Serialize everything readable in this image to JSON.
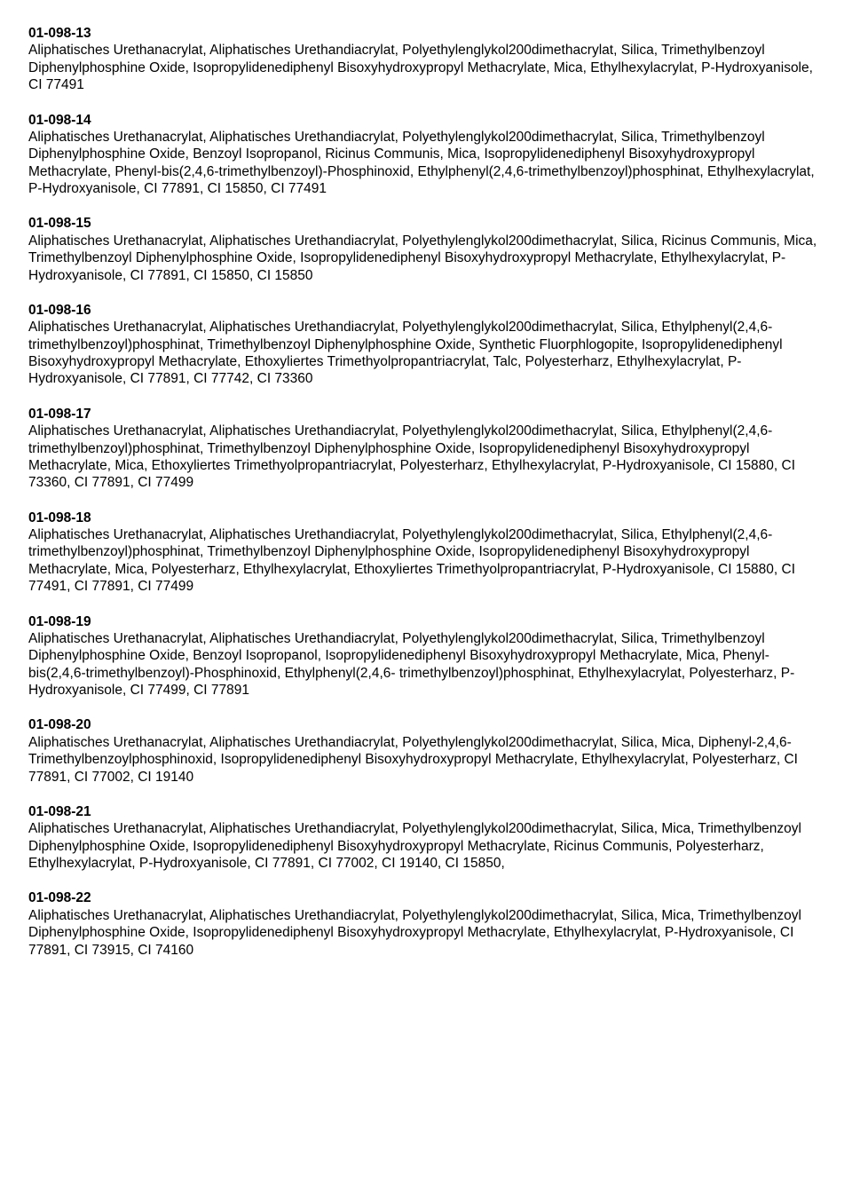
{
  "entries": [
    {
      "code": "01-098-13",
      "ingredients": "Aliphatisches Urethanacrylat, Aliphatisches Urethandiacrylat, Polyethylenglykol200dimethacrylat, Silica, Trimethylbenzoyl Diphenylphosphine Oxide, Isopropylidenediphenyl Bisoxyhydroxypropyl Methacrylate, Mica, Ethylhexylacrylat, P-Hydroxyanisole, CI 77491"
    },
    {
      "code": "01-098-14",
      "ingredients": "Aliphatisches Urethanacrylat, Aliphatisches Urethandiacrylat, Polyethylenglykol200dimethacrylat, Silica, Trimethylbenzoyl Diphenylphosphine Oxide, Benzoyl Isopropanol, Ricinus Communis, Mica, Isopropylidenediphenyl Bisoxyhydroxypropyl Methacrylate, Phenyl-bis(2,4,6-trimethylbenzoyl)-Phosphinoxid, Ethylphenyl(2,4,6-trimethylbenzoyl)phosphinat, Ethylhexylacrylat, P-Hydroxyanisole, CI 77891, CI 15850, CI 77491"
    },
    {
      "code": "01-098-15",
      "ingredients": "Aliphatisches Urethanacrylat, Aliphatisches Urethandiacrylat, Polyethylenglykol200dimethacrylat, Silica, Ricinus Communis, Mica, Trimethylbenzoyl Diphenylphosphine Oxide, Isopropylidenediphenyl Bisoxyhydroxypropyl Methacrylate, Ethylhexylacrylat, P-Hydroxyanisole, CI 77891, CI 15850, CI 15850"
    },
    {
      "code": "01-098-16",
      "ingredients": "Aliphatisches Urethanacrylat, Aliphatisches Urethandiacrylat, Polyethylenglykol200dimethacrylat, Silica, Ethylphenyl(2,4,6-trimethylbenzoyl)phosphinat, Trimethylbenzoyl Diphenylphosphine Oxide, Synthetic Fluorphlogopite, Isopropylidenediphenyl Bisoxyhydroxypropyl Methacrylate, Ethoxyliertes Trimethyolpropantriacrylat, Talc, Polyesterharz, Ethylhexylacrylat, P-Hydroxyanisole, CI 77891, CI 77742, CI 73360"
    },
    {
      "code": "01-098-17",
      "ingredients": "Aliphatisches Urethanacrylat, Aliphatisches Urethandiacrylat, Polyethylenglykol200dimethacrylat, Silica, Ethylphenyl(2,4,6-trimethylbenzoyl)phosphinat, Trimethylbenzoyl Diphenylphosphine Oxide, Isopropylidenediphenyl Bisoxyhydroxypropyl Methacrylate, Mica, Ethoxyliertes Trimethyolpropantriacrylat, Polyesterharz, Ethylhexylacrylat, P-Hydroxyanisole, CI 15880, CI 73360, CI 77891, CI 77499"
    },
    {
      "code": "01-098-18",
      "ingredients": "Aliphatisches Urethanacrylat, Aliphatisches Urethandiacrylat, Polyethylenglykol200dimethacrylat, Silica, Ethylphenyl(2,4,6-trimethylbenzoyl)phosphinat, Trimethylbenzoyl Diphenylphosphine Oxide, Isopropylidenediphenyl Bisoxyhydroxypropyl Methacrylate, Mica, Polyesterharz, Ethylhexylacrylat, Ethoxyliertes Trimethyolpropantriacrylat, P-Hydroxyanisole, CI 15880, CI 77491, CI 77891, CI 77499"
    },
    {
      "code": "01-098-19",
      "ingredients": "Aliphatisches Urethanacrylat, Aliphatisches Urethandiacrylat, Polyethylenglykol200dimethacrylat, Silica, Trimethylbenzoyl Diphenylphosphine Oxide, Benzoyl Isopropanol, Isopropylidenediphenyl Bisoxyhydroxypropyl Methacrylate, Mica, Phenyl-bis(2,4,6-trimethylbenzoyl)-Phosphinoxid, Ethylphenyl(2,4,6- trimethylbenzoyl)phosphinat, Ethylhexylacrylat, Polyesterharz, P-Hydroxyanisole, CI 77499, CI 77891"
    },
    {
      "code": "01-098-20",
      "ingredients": "Aliphatisches Urethanacrylat, Aliphatisches Urethandiacrylat, Polyethylenglykol200dimethacrylat, Silica, Mica, Diphenyl-2,4,6-Trimethylbenzoylphosphinoxid, Isopropylidenediphenyl Bisoxyhydroxypropyl Methacrylate, Ethylhexylacrylat, Polyesterharz, CI 77891, CI 77002, CI 19140"
    },
    {
      "code": "01-098-21",
      "ingredients": "Aliphatisches Urethanacrylat, Aliphatisches Urethandiacrylat, Polyethylenglykol200dimethacrylat, Silica, Mica, Trimethylbenzoyl Diphenylphosphine Oxide, Isopropylidenediphenyl Bisoxyhydroxypropyl Methacrylate, Ricinus Communis, Polyesterharz, Ethylhexylacrylat, P-Hydroxyanisole, CI 77891, CI 77002, CI 19140, CI 15850,"
    },
    {
      "code": "01-098-22",
      "ingredients": "Aliphatisches Urethanacrylat, Aliphatisches Urethandiacrylat, Polyethylenglykol200dimethacrylat, Silica, Mica, Trimethylbenzoyl Diphenylphosphine Oxide, Isopropylidenediphenyl Bisoxyhydroxypropyl Methacrylate, Ethylhexylacrylat, P-Hydroxyanisole, CI 77891, CI 73915, CI 74160"
    }
  ]
}
